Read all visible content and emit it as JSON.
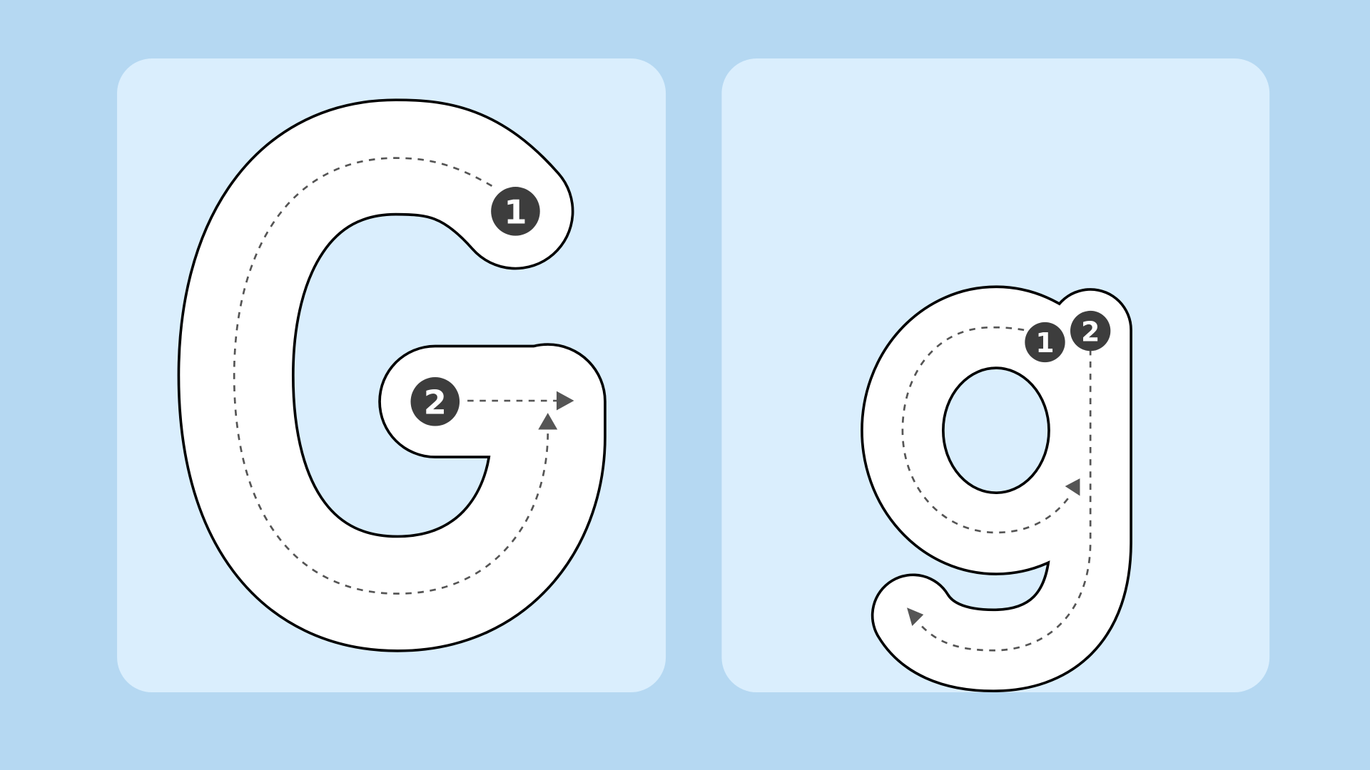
{
  "cards": [
    {
      "steps": [
        "1",
        "2"
      ]
    },
    {
      "steps": [
        "1",
        "2"
      ]
    }
  ]
}
